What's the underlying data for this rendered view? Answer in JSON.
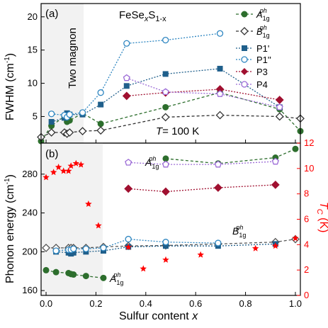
{
  "chart_data": [
    {
      "panel_label": "(a)",
      "type": "line",
      "title": "FeSe_xS_1-x",
      "title_main": "FeSe",
      "title_sub1": "x",
      "title_mid": "S",
      "title_sub2": "1-x",
      "annotation_temp": "T = 100 K",
      "temp_italic": "T",
      "temp_rest": "= 100 K",
      "shaded_label": "Two magnon",
      "ylabel": "FWHM (cm",
      "ylabel_sup": "-1",
      "ylabel_end": ")",
      "xlim": [
        0,
        1
      ],
      "ylim": [
        1,
        22
      ],
      "yticks": [
        "5",
        "10",
        "15",
        "20"
      ],
      "shaded_region": [
        0,
        0.24
      ],
      "legend_position": "top-right",
      "legend": [
        "A_1g^ph",
        "B_1g^ph",
        "P1'",
        "P1''",
        "P3",
        "P4"
      ],
      "legend_labels": {
        "A": "A",
        "A_sub": "1g",
        "A_sup": "ph",
        "B": "B",
        "B_sub": "1g",
        "B_sup": "ph",
        "P1p": "P1'",
        "P1pp": "P1''",
        "P3": "P3",
        "P4": "P4"
      },
      "series": [
        {
          "name": "A1g ph",
          "color": "#2d6e2d",
          "marker": "filled-circle",
          "style": "dashed",
          "x": [
            0.0,
            0.04,
            0.09,
            0.1,
            0.11,
            0.16,
            0.23,
            0.48,
            0.69,
            0.92,
            1.0
          ],
          "y": [
            1.3,
            3.6,
            5.0,
            4.2,
            4.4,
            5.5,
            3.9,
            6.4,
            8.6,
            6.1,
            2.8
          ]
        },
        {
          "name": "B1g ph",
          "color": "#333333",
          "marker": "open-diamond",
          "style": "dashed",
          "x": [
            0.0,
            0.04,
            0.09,
            0.1,
            0.11,
            0.16,
            0.23,
            0.48,
            0.69,
            0.92,
            1.0
          ],
          "y": [
            1.9,
            2.6,
            2.6,
            2.4,
            2.6,
            2.8,
            2.9,
            4.9,
            5.2,
            5.0,
            4.7
          ]
        },
        {
          "name": "P1'",
          "color": "#1f5f8b",
          "marker": "filled-square",
          "style": "dotted",
          "x": [
            0.04,
            0.09,
            0.1,
            0.11,
            0.16,
            0.23,
            0.33,
            0.48,
            0.69,
            0.92
          ],
          "y": [
            4.2,
            4.8,
            5.5,
            5.3,
            5.3,
            6.8,
            9.6,
            11.4,
            12.2,
            6.4
          ]
        },
        {
          "name": "P1''",
          "color": "#2e86c1",
          "marker": "open-circle",
          "style": "dotted",
          "x": [
            0.04,
            0.09,
            0.1,
            0.11,
            0.16,
            0.23,
            0.33,
            0.48,
            0.69
          ],
          "y": [
            5.4,
            5.2,
            4.9,
            5.3,
            5.6,
            8.6,
            16.0,
            16.5,
            17.5
          ]
        },
        {
          "name": "P3",
          "color": "#a01030",
          "marker": "filled-diamond",
          "style": "dotted",
          "x": [
            0.33,
            0.48,
            0.69,
            0.92
          ],
          "y": [
            8.1,
            8.6,
            9.1,
            7.5
          ]
        },
        {
          "name": "P4",
          "color": "#9b6ad6",
          "marker": "open-pentagon",
          "style": "dotted",
          "x": [
            0.33,
            0.48,
            0.69,
            0.92
          ],
          "y": [
            10.8,
            8.7,
            8.4,
            6.4
          ]
        }
      ]
    },
    {
      "panel_label": "(b)",
      "type": "line",
      "xlabel": "Sulfur content",
      "xlabel_var": "x",
      "ylabel": "Phonon energy (cm",
      "ylabel_sup": "-1",
      "ylabel_end": ")",
      "ylabel_right": "T",
      "ylabel_right_sub": "C",
      "ylabel_right_end": " (K)",
      "xlim": [
        -0.02,
        1.02
      ],
      "ylim": [
        155,
        312
      ],
      "ylim_right": [
        0,
        12
      ],
      "xticks": [
        "0.0",
        "0.2",
        "0.4",
        "0.6",
        "0.8",
        "1.0"
      ],
      "yticks": [
        "160",
        "200",
        "240",
        "280"
      ],
      "yticks_right": [
        "0",
        "2",
        "4",
        "6",
        "8",
        "10",
        "12"
      ],
      "shaded_region": [
        0,
        0.24
      ],
      "annotations": {
        "A": "A",
        "A_sub": "1g",
        "A_sup": "ph",
        "B": "B",
        "B_sub": "1g",
        "B_sup": "ph"
      },
      "series": [
        {
          "name": "A1g ph (low)",
          "color": "#2d6e2d",
          "marker": "filled-circle",
          "style": "dashed",
          "x": [
            0.0,
            0.04,
            0.09,
            0.1,
            0.11,
            0.16,
            0.23
          ],
          "y": [
            181,
            179,
            178,
            177,
            176.5,
            175,
            173
          ]
        },
        {
          "name": "A1g ph (high)",
          "color": "#2d6e2d",
          "marker": "filled-circle",
          "style": "dashed",
          "x": [
            0.48,
            0.69,
            0.92,
            1.0
          ],
          "y": [
            296,
            291,
            297,
            306
          ]
        },
        {
          "name": "B1g ph",
          "color": "#555555",
          "marker": "open-diamond",
          "style": "dashed",
          "x": [
            0.0,
            0.04,
            0.09,
            0.1,
            0.11,
            0.16,
            0.23,
            0.33,
            0.48,
            0.69,
            0.92,
            1.0
          ],
          "y": [
            204,
            204,
            204,
            204,
            204,
            204,
            205,
            206,
            206.5,
            208,
            210,
            213
          ]
        },
        {
          "name": "P1'",
          "color": "#1f5f8b",
          "marker": "filled-square",
          "style": "dotted",
          "x": [
            0.04,
            0.09,
            0.1,
            0.11,
            0.16,
            0.23,
            0.33,
            0.48,
            0.69,
            0.92
          ],
          "y": [
            200,
            199,
            198,
            199,
            200,
            201,
            205,
            206,
            206,
            208
          ]
        },
        {
          "name": "P1''",
          "color": "#2e86c1",
          "marker": "open-circle",
          "style": "dotted",
          "x": [
            0.04,
            0.09,
            0.1,
            0.11,
            0.16,
            0.23,
            0.33,
            0.48,
            0.69
          ],
          "y": [
            201,
            202,
            202,
            203,
            203,
            204,
            213,
            210,
            209
          ]
        },
        {
          "name": "P3",
          "color": "#a01030",
          "marker": "filled-diamond",
          "style": "dotted",
          "x": [
            0.33,
            0.48,
            0.69,
            0.92
          ],
          "y": [
            265,
            262,
            266,
            269
          ]
        },
        {
          "name": "P4",
          "color": "#9b6ad6",
          "marker": "open-pentagon",
          "style": "dotted",
          "x": [
            0.33,
            0.48,
            0.69,
            0.92
          ],
          "y": [
            292,
            290,
            290,
            293
          ]
        },
        {
          "name": "Tc",
          "color": "#ff0000",
          "marker": "star",
          "axis": "right",
          "x": [
            0.0,
            0.03,
            0.05,
            0.07,
            0.09,
            0.1,
            0.12,
            0.14,
            0.17,
            0.21,
            0.33,
            0.39,
            0.48,
            0.62,
            0.84,
            0.92,
            1.0
          ],
          "y": [
            9.3,
            9.7,
            10.1,
            9.8,
            9.8,
            10.2,
            10.4,
            10.3,
            7.2,
            5.5,
            3.8,
            2.1,
            2.8,
            3.2,
            3.7,
            3.9,
            4.5
          ]
        }
      ]
    }
  ]
}
